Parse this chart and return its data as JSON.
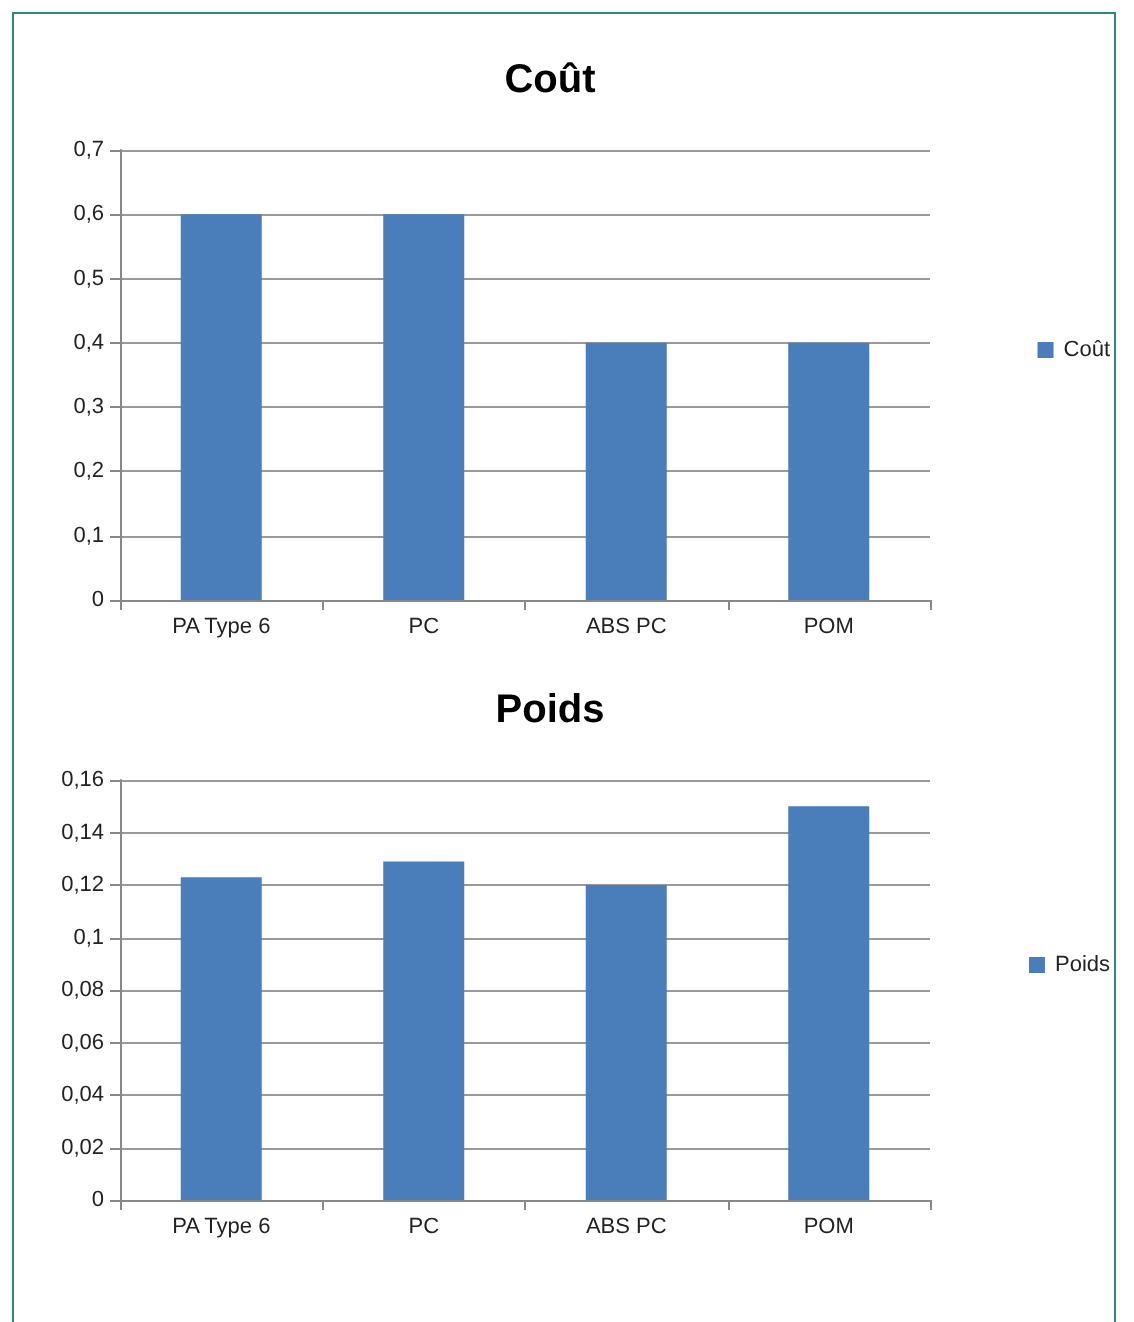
{
  "chart_data": [
    {
      "type": "bar",
      "title": "Coût",
      "categories": [
        "PA Type 6",
        "PC",
        "ABS PC",
        "POM"
      ],
      "series": [
        {
          "name": "Coût",
          "color": "#4a7ebb",
          "values": [
            0.6,
            0.6,
            0.4,
            0.4
          ]
        }
      ],
      "ylim": [
        0,
        0.7
      ],
      "yticks": [
        0,
        {
          "value": 0.1,
          "label": "0,1"
        },
        {
          "value": 0.2,
          "label": "0,2"
        },
        {
          "value": 0.3,
          "label": "0,3"
        },
        {
          "value": 0.4,
          "label": "0,4"
        },
        {
          "value": 0.5,
          "label": "0,5"
        },
        {
          "value": 0.6,
          "label": "0,6"
        },
        {
          "value": 0.7,
          "label": "0,7"
        }
      ],
      "grid": "y",
      "legend": "right"
    },
    {
      "type": "bar",
      "title": "Poids",
      "categories": [
        "PA Type 6",
        "PC",
        "ABS PC",
        "POM"
      ],
      "series": [
        {
          "name": "Poids",
          "color": "#4a7ebb",
          "values": [
            0.123,
            0.129,
            0.12,
            0.15
          ]
        }
      ],
      "ylim": [
        0,
        0.16
      ],
      "yticks": [
        0,
        {
          "value": 0.02,
          "label": "0,02"
        },
        {
          "value": 0.04,
          "label": "0,04"
        },
        {
          "value": 0.06,
          "label": "0,06"
        },
        {
          "value": 0.08,
          "label": "0,08"
        },
        {
          "value": 0.1,
          "label": "0,1"
        },
        {
          "value": 0.12,
          "label": "0,12"
        },
        {
          "value": 0.14,
          "label": "0,14"
        },
        {
          "value": 0.16,
          "label": "0,16"
        }
      ],
      "grid": "y",
      "legend": "right"
    }
  ]
}
